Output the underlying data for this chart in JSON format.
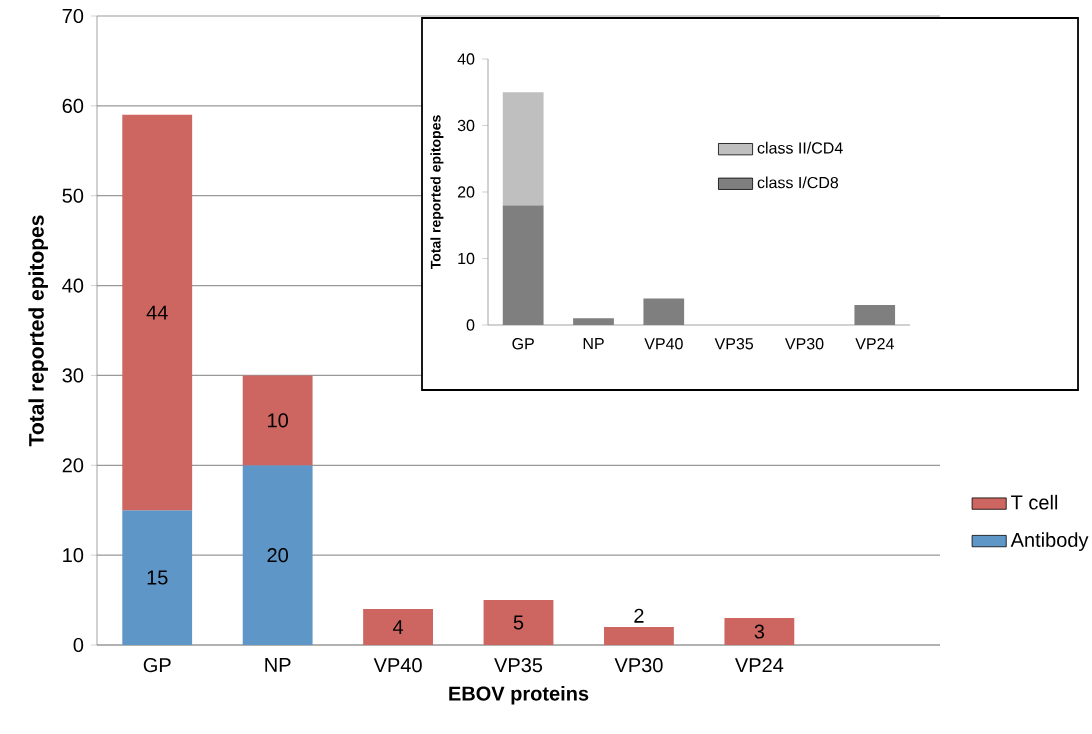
{
  "chart_data": [
    {
      "type": "bar",
      "stacked": true,
      "xlabel": "EBOV proteins",
      "ylabel": "Total reported epitopes",
      "categories": [
        "GP",
        "NP",
        "VP40",
        "VP35",
        "VP30",
        "VP24",
        null
      ],
      "series": [
        {
          "name": "Antibody",
          "color": "#5f96c8",
          "values": [
            15,
            20,
            null,
            null,
            null,
            null,
            null
          ],
          "value_labels": [
            "15",
            "20",
            null,
            null,
            null,
            null,
            null
          ]
        },
        {
          "name": "T cell",
          "color": "#cd6660",
          "values": [
            44,
            10,
            4,
            5,
            2,
            3,
            null
          ],
          "value_labels": [
            "44",
            "10",
            "4",
            "5",
            "2",
            "3",
            null
          ]
        }
      ],
      "ylim": [
        0,
        70
      ],
      "yticks": [
        0,
        10,
        20,
        30,
        40,
        50,
        60,
        70
      ],
      "grid": "y",
      "legend": "right"
    },
    {
      "type": "bar",
      "stacked": true,
      "ylabel": "Total reported epitopes",
      "categories": [
        "GP",
        "NP",
        "VP40",
        "VP35",
        "VP30",
        "VP24"
      ],
      "series": [
        {
          "name": "class I/CD8",
          "color": "#7f7f7f",
          "values": [
            18,
            1,
            4,
            0,
            0,
            3
          ]
        },
        {
          "name": "class II/CD4",
          "color": "#bfbfbf",
          "values": [
            17,
            0,
            0,
            0,
            0,
            0
          ]
        }
      ],
      "ylim": [
        0,
        40
      ],
      "yticks": [
        0,
        10,
        20,
        30,
        40
      ],
      "legend": "right"
    }
  ]
}
